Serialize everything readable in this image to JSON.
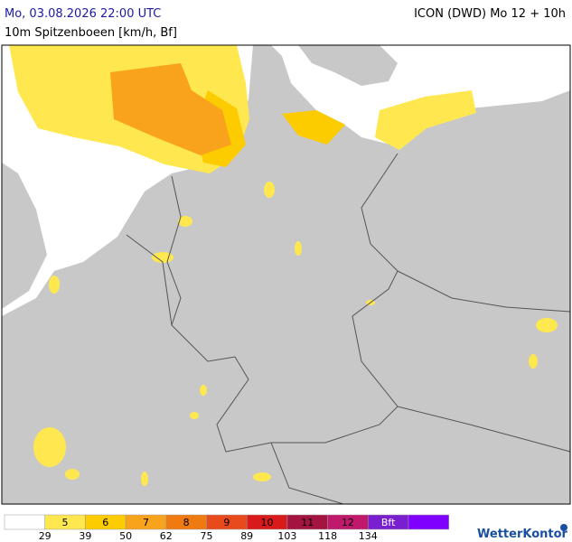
{
  "header": {
    "title": "Mo, 03.08.2026 22:00 UTC",
    "model": "ICON (DWD) Mo 12 + 10h",
    "subtitle": "10m Spitzenboeen [km/h, Bf]"
  },
  "legend": {
    "colors": [
      "#ffffff",
      "#ffe84f",
      "#fccb00",
      "#f9a21c",
      "#f07a12",
      "#e84a1c",
      "#d91a1a",
      "#a31540",
      "#c0186a",
      "#7a1fd0",
      "#8000ff"
    ],
    "labels": [
      "5",
      "6",
      "7",
      "8",
      "9",
      "10",
      "11",
      "12",
      "Bft"
    ],
    "thresholds": [
      29,
      39,
      50,
      62,
      75,
      89,
      103,
      118,
      134
    ]
  },
  "logo": "WetterKontor"
}
